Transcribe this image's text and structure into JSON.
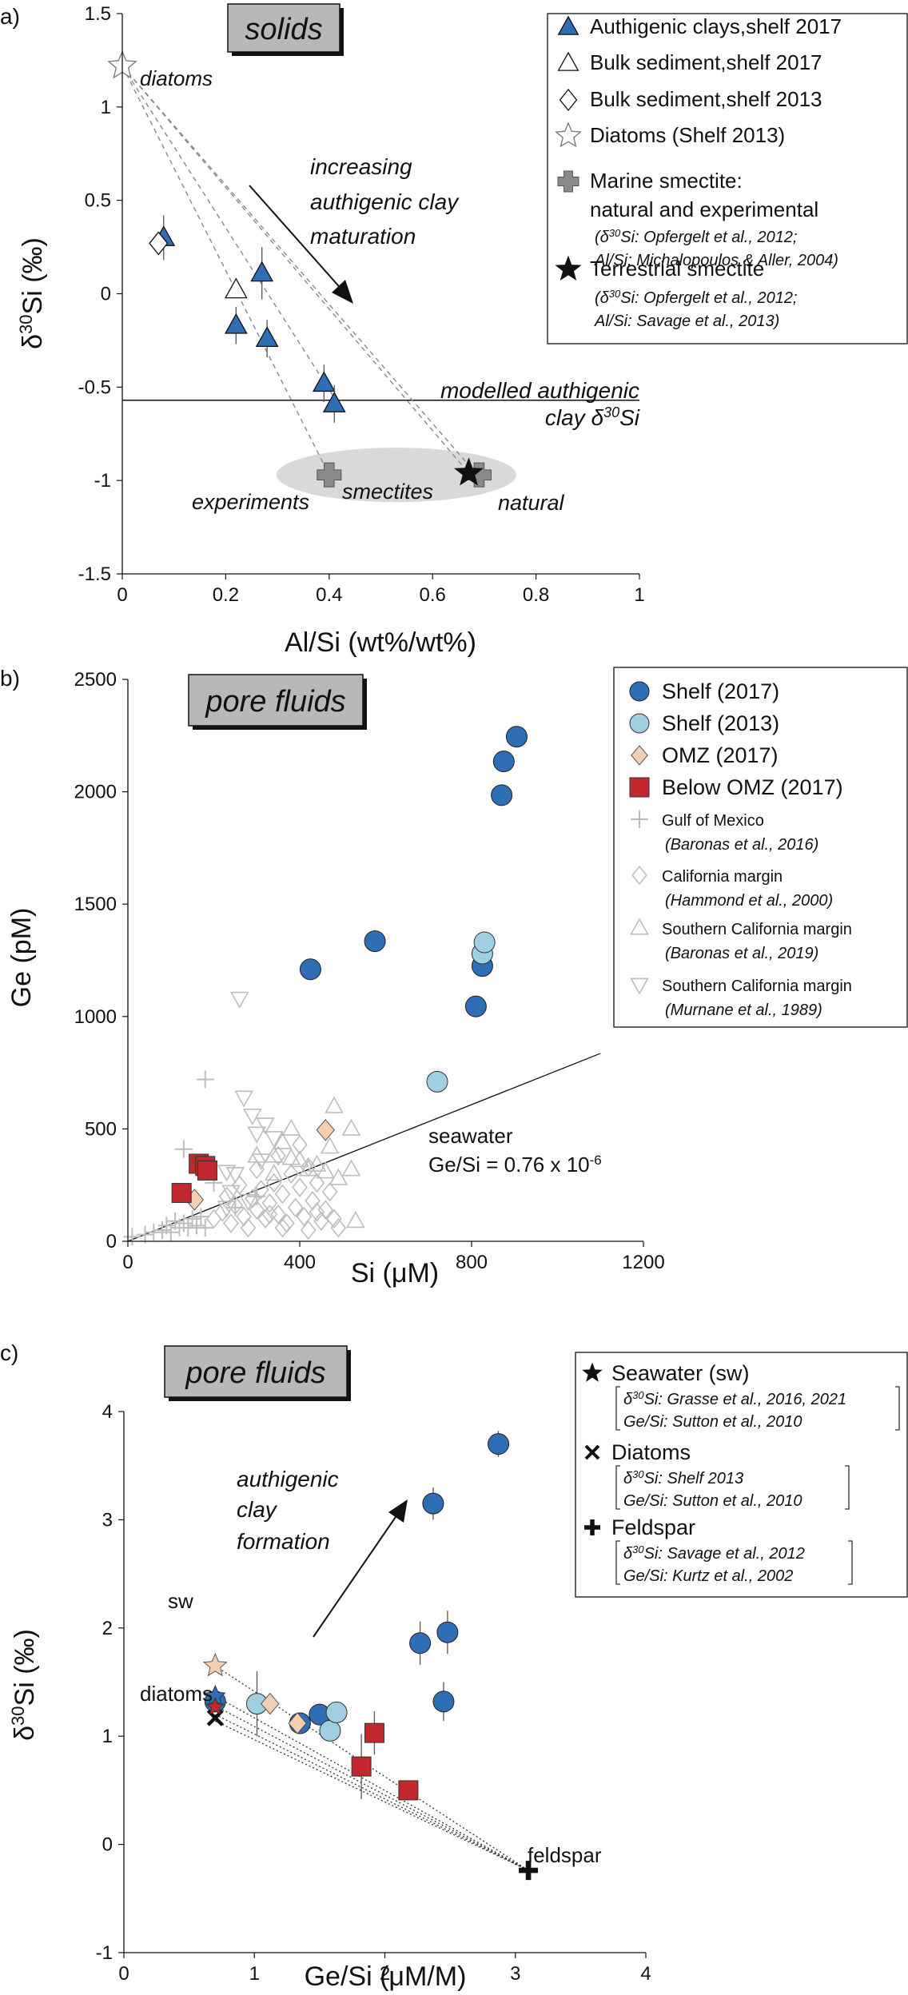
{
  "chart_data": [
    {
      "type": "scatter",
      "panel_label": "a)",
      "title": "solids",
      "xlabel": "Al/Si (wt%/wt%)",
      "ylabel_prefix": "δ",
      "ylabel_sup": "30",
      "ylabel_suffix": "Si (‰)",
      "xlim": [
        0,
        1
      ],
      "ylim": [
        -1.5,
        1.5
      ],
      "xticks": [
        "0",
        "0.2",
        "0.4",
        "0.6",
        "0.8",
        "1"
      ],
      "yticks": [
        "1.5",
        "1",
        "0.5",
        "0",
        "-0.5",
        "-1",
        "-1.5"
      ],
      "series": [
        {
          "name": "Authigenic clays,shelf 2017",
          "marker": "triangle-blue",
          "points": [
            [
              0.08,
              0.3
            ],
            [
              0.22,
              -0.17
            ],
            [
              0.27,
              0.11
            ],
            [
              0.28,
              -0.24
            ],
            [
              0.39,
              -0.48
            ],
            [
              0.41,
              -0.59
            ]
          ],
          "errors": [
            0.12,
            0.1,
            0.14,
            0.1,
            0.1,
            0.1
          ]
        },
        {
          "name": "Bulk sediment,shelf 2017",
          "marker": "triangle-open",
          "points": [
            [
              0.22,
              0.02
            ]
          ]
        },
        {
          "name": "Bulk sediment,shelf 2013",
          "marker": "diamond-open",
          "points": [
            [
              0.07,
              0.27
            ]
          ]
        },
        {
          "name": "Diatoms (Shelf 2013)",
          "marker": "star-open",
          "points": [
            [
              0.0,
              1.22
            ]
          ]
        },
        {
          "name": "Marine smectite: natural and experimental",
          "marker": "plus-gray",
          "points": [
            [
              0.4,
              -0.97
            ],
            [
              0.69,
              -0.97
            ]
          ]
        },
        {
          "name": "Terrestrial smectite",
          "marker": "star-black",
          "points": [
            [
              0.67,
              -0.96
            ]
          ]
        }
      ],
      "legend": [
        {
          "marker": "triangle-blue",
          "label": "Authigenic clays,shelf 2017"
        },
        {
          "marker": "triangle-open",
          "label": "Bulk sediment,shelf 2017"
        },
        {
          "marker": "diamond-open",
          "label": "Bulk sediment,shelf 2013"
        },
        {
          "marker": "star-open",
          "label": "Diatoms (Shelf 2013)"
        },
        {
          "marker": "plus-gray",
          "label": "Marine smectite:",
          "label2": "natural and experimental",
          "ref1": "(δ30Si: Opfergelt et al., 2012;",
          "ref2": "Al/Si: Michalopoulos & Aller, 2004)"
        },
        {
          "marker": "star-black",
          "label": "Terrestrial smectite",
          "ref1": "(δ30Si: Opfergelt et al., 2012;",
          "ref2": "Al/Si: Savage et al., 2013)"
        }
      ],
      "annotations": {
        "diatoms": "diatoms",
        "arrow_line1": "increasing",
        "arrow_line2": "authigenic clay",
        "arrow_line3": "maturation",
        "model_line1": "modelled authigenic",
        "model_line2": "clay δ30Si",
        "experiments": "experiments",
        "smectites": "smectites",
        "natural": "natural",
        "model_value": -0.57
      }
    },
    {
      "type": "scatter",
      "panel_label": "b)",
      "title": "pore fluids",
      "xlabel": "Si (μM)",
      "ylabel": "Ge (pM)",
      "xlim": [
        0,
        1200
      ],
      "ylim": [
        0,
        2500
      ],
      "xticks": [
        "0",
        "400",
        "800",
        "1200"
      ],
      "yticks": [
        "2500",
        "2000",
        "1500",
        "1000",
        "500",
        "0"
      ],
      "series": [
        {
          "name": "Shelf (2017)",
          "marker": "circle-dark",
          "points": [
            [
              425,
              1210
            ],
            [
              575,
              1335
            ],
            [
              810,
              1045
            ],
            [
              825,
              1225
            ],
            [
              870,
              1985
            ],
            [
              875,
              2135
            ],
            [
              905,
              2245
            ]
          ]
        },
        {
          "name": "Shelf (2013)",
          "marker": "circle-light",
          "points": [
            [
              720,
              710
            ],
            [
              825,
              1280
            ],
            [
              830,
              1330
            ]
          ]
        },
        {
          "name": "OMZ (2017)",
          "marker": "diamond-orange",
          "points": [
            [
              155,
              185
            ],
            [
              460,
              495
            ]
          ]
        },
        {
          "name": "Below OMZ (2017)",
          "marker": "square-red",
          "points": [
            [
              125,
              215
            ],
            [
              165,
              345
            ],
            [
              180,
              335
            ],
            [
              185,
              315
            ]
          ]
        },
        {
          "name": "Gulf of Mexico",
          "marker": "plus-light",
          "points": [
            [
              10,
              20
            ],
            [
              40,
              30
            ],
            [
              60,
              40
            ],
            [
              80,
              50
            ],
            [
              90,
              70
            ],
            [
              100,
              40
            ],
            [
              110,
              90
            ],
            [
              120,
              60
            ],
            [
              130,
              80
            ],
            [
              140,
              60
            ],
            [
              150,
              100
            ],
            [
              160,
              70
            ],
            [
              170,
              110
            ],
            [
              180,
              60
            ],
            [
              130,
              410
            ],
            [
              180,
              720
            ],
            [
              200,
              260
            ],
            [
              250,
              150
            ],
            [
              300,
              200
            ]
          ]
        },
        {
          "name": "California margin",
          "marker": "diamond-light",
          "points": [
            [
              200,
              100
            ],
            [
              220,
              130
            ],
            [
              240,
              80
            ],
            [
              250,
              160
            ],
            [
              270,
              110
            ],
            [
              280,
              60
            ],
            [
              290,
              190
            ],
            [
              300,
              140
            ],
            [
              310,
              230
            ],
            [
              320,
              100
            ],
            [
              330,
              170
            ],
            [
              340,
              260
            ],
            [
              350,
              120
            ],
            [
              360,
              210
            ],
            [
              370,
              80
            ],
            [
              380,
              300
            ],
            [
              390,
              150
            ],
            [
              400,
              240
            ],
            [
              410,
              110
            ],
            [
              420,
              330
            ],
            [
              430,
              180
            ],
            [
              440,
              260
            ],
            [
              450,
              90
            ],
            [
              460,
              140
            ],
            [
              470,
              220
            ],
            [
              480,
              100
            ],
            [
              490,
              60
            ],
            [
              400,
              430
            ],
            [
              350,
              380
            ],
            [
              300,
              320
            ],
            [
              260,
              250
            ],
            [
              230,
              200
            ],
            [
              330,
              120
            ],
            [
              360,
              60
            ],
            [
              420,
              50
            ],
            [
              440,
              130
            ]
          ]
        },
        {
          "name": "Southern California margin (Baronas)",
          "marker": "triangle-light",
          "points": [
            [
              300,
              380
            ],
            [
              340,
              380
            ],
            [
              360,
              440
            ],
            [
              380,
              370
            ],
            [
              400,
              360
            ],
            [
              420,
              320
            ],
            [
              440,
              340
            ],
            [
              460,
              310
            ],
            [
              470,
              420
            ],
            [
              480,
              600
            ],
            [
              490,
              280
            ],
            [
              520,
              500
            ],
            [
              520,
              320
            ],
            [
              530,
              90
            ],
            [
              380,
              500
            ],
            [
              340,
              300
            ]
          ]
        },
        {
          "name": "Southern California margin (Murnane)",
          "marker": "invtriangle-light",
          "points": [
            [
              260,
              1080
            ],
            [
              270,
              640
            ],
            [
              290,
              560
            ],
            [
              300,
              480
            ],
            [
              320,
              520
            ],
            [
              340,
              460
            ],
            [
              250,
              300
            ],
            [
              240,
              220
            ],
            [
              280,
              180
            ],
            [
              230,
              150
            ],
            [
              310,
              360
            ],
            [
              230,
              310
            ]
          ]
        }
      ],
      "seawater_line": {
        "slope_pM_per_uM": 0.76,
        "x": [
          0,
          1100
        ]
      },
      "legend": [
        {
          "marker": "circle-dark",
          "label": "Shelf (2017)"
        },
        {
          "marker": "circle-light",
          "label": "Shelf (2013)"
        },
        {
          "marker": "diamond-orange",
          "label": "OMZ (2017)"
        },
        {
          "marker": "square-red",
          "label": "Below OMZ (2017)"
        },
        {
          "marker": "plus-light",
          "label": "Gulf of Mexico",
          "ref1": "(Baronas et al., 2016)"
        },
        {
          "marker": "diamond-light",
          "label": "California margin",
          "ref1": "(Hammond et al., 2000)"
        },
        {
          "marker": "triangle-light",
          "label": "Southern California margin",
          "ref1": "(Baronas et al., 2019)"
        },
        {
          "marker": "invtriangle-light",
          "label": "Southern California margin",
          "ref1": "(Murnane et al., 1989)"
        }
      ],
      "annotations": {
        "seawater": "seawater",
        "ratio": "Ge/Si = 0.76 x 10",
        "ratio_exp": "-6"
      }
    },
    {
      "type": "scatter",
      "panel_label": "c)",
      "title": "pore fluids",
      "xlabel": "Ge/Si (μM/M)",
      "ylabel_prefix": "δ",
      "ylabel_sup": "30",
      "ylabel_suffix": "Si (‰)",
      "xlim": [
        0,
        4
      ],
      "ylim": [
        -1,
        4
      ],
      "xticks": [
        "0",
        "1",
        "2",
        "3",
        "4"
      ],
      "yticks": [
        "4",
        "3",
        "2",
        "1",
        "0",
        "-1"
      ],
      "series": [
        {
          "name": "Shelf (2017)",
          "marker": "circle-dark",
          "points": [
            [
              0.7,
              1.32
            ],
            [
              1.35,
              1.12
            ],
            [
              1.5,
              1.2
            ],
            [
              2.27,
              1.86
            ],
            [
              2.37,
              3.15
            ],
            [
              2.45,
              1.32
            ],
            [
              2.48,
              1.96
            ],
            [
              2.87,
              3.7
            ]
          ],
          "errors": [
            0,
            0.1,
            0.1,
            0.2,
            0.15,
            0.18,
            0.2,
            0.12
          ]
        },
        {
          "name": "Shelf (2013)",
          "marker": "circle-light",
          "points": [
            [
              1.02,
              1.3
            ],
            [
              1.58,
              1.05
            ],
            [
              1.63,
              1.22
            ]
          ],
          "errors": [
            0.3,
            0,
            0
          ]
        },
        {
          "name": "OMZ (2017)",
          "marker": "diamond-orange",
          "points": [
            [
              1.12,
              1.3
            ],
            [
              1.33,
              1.12
            ]
          ],
          "errors": [
            0,
            0
          ]
        },
        {
          "name": "Below OMZ (2017)",
          "marker": "square-red",
          "points": [
            [
              1.82,
              0.72
            ],
            [
              1.92,
              1.03
            ],
            [
              2.18,
              0.5
            ]
          ],
          "errors": [
            0.3,
            0.2,
            0
          ]
        },
        {
          "name": "Seawater (sw)",
          "marker": "star-orange",
          "points": [
            [
              0.7,
              1.65
            ]
          ]
        },
        {
          "name": "Diatoms",
          "marker": "x-black",
          "points": [
            [
              0.7,
              1.17
            ]
          ]
        },
        {
          "name": "Feldspar",
          "marker": "plus-black",
          "points": [
            [
              3.1,
              -0.24
            ]
          ]
        }
      ],
      "legend": [
        {
          "marker": "star-black",
          "label": "Seawater (sw)",
          "ref1": "δ30Si: Grasse et al., 2016, 2021",
          "ref2": "Ge/Si: Sutton et al., 2010"
        },
        {
          "marker": "x-black",
          "label": "Diatoms",
          "ref1": "δ30Si: Shelf 2013",
          "ref2": "Ge/Si: Sutton et al., 2010"
        },
        {
          "marker": "plus-black",
          "label": "Feldspar",
          "ref1": "δ30Si: Savage et al., 2012",
          "ref2": "Ge/Si: Kurtz et al., 2002"
        }
      ],
      "annotations": {
        "sw": "sw",
        "diatoms": "diatoms",
        "feldspar": "feldspar",
        "arrow_line1": "authigenic",
        "arrow_line2": "clay",
        "arrow_line3": "formation"
      }
    }
  ],
  "colors": {
    "blue": "#2f6db5",
    "light_blue": "#9fcfe0",
    "orange": "#f6cfb1",
    "red": "#c1272d",
    "gray_marker": "#8a8a8a",
    "light_gray": "#bdbdbd",
    "title_box": "#b9b7b8",
    "ellipse": "#d9d9d9"
  }
}
